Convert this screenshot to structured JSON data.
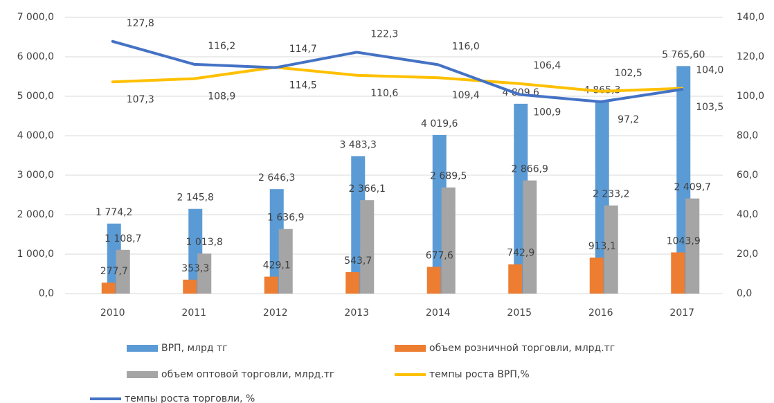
{
  "chart_data": {
    "type": "bar",
    "categories": [
      "2010",
      "2011",
      "2012",
      "2013",
      "2014",
      "2015",
      "2016",
      "2017"
    ],
    "series": [
      {
        "name": "ВРП, млрд тг",
        "color": "#5b9bd5",
        "values": [
          1774.2,
          2145.8,
          2646.3,
          3483.3,
          4019.6,
          4809.6,
          4865.3,
          5765.6
        ],
        "value_labels": [
          "1 774,2",
          "2 145,8",
          "2 646,3",
          "3 483,3",
          "4 019,6",
          "4 809,6",
          "4 865,3",
          "5 765,60"
        ]
      },
      {
        "name": "объем розничной торговли, млрд.тг",
        "color": "#ed7d31",
        "values": [
          277.7,
          353.3,
          429.1,
          543.7,
          677.6,
          742.9,
          913.1,
          1043.9
        ],
        "value_labels": [
          "277,7",
          "353,3",
          "429,1",
          "543,7",
          "677,6",
          "742,9",
          "913,1",
          "1043,9"
        ]
      },
      {
        "name": "объем оптовой торговли, млрд.тг",
        "color": "#a5a5a5",
        "values": [
          1108.7,
          1013.8,
          1636.9,
          2366.1,
          2689.5,
          2866.9,
          2233.2,
          2409.7
        ],
        "value_labels": [
          "1 108,7",
          "1 013,8",
          "1 636,9",
          "2 366,1",
          "2 689,5",
          "2 866,9",
          "2 233,2",
          "2 409,7"
        ]
      },
      {
        "name": "темпы роста ВРП,%",
        "color": "#ffc000",
        "type": "line",
        "axis": "y2",
        "values": [
          107.3,
          108.9,
          114.7,
          110.6,
          109.4,
          106.4,
          102.5,
          104.0
        ],
        "value_labels": [
          "107,3",
          "108,9",
          "114,7",
          "110,6",
          "109,4",
          "106,4",
          "102,5",
          "104,0"
        ]
      },
      {
        "name": "темпы роста торговли, %",
        "color": "#4472c4",
        "type": "line",
        "axis": "y2",
        "values": [
          127.8,
          116.2,
          114.5,
          122.3,
          116.0,
          100.9,
          97.2,
          103.5
        ],
        "value_labels": [
          "127,8",
          "116,2",
          "114,5",
          "122,3",
          "116,0",
          "100,9",
          "97,2",
          "103,5"
        ]
      }
    ],
    "ylim": [
      0,
      7000
    ],
    "yticks": [
      {
        "value": 0,
        "label": "0,0"
      },
      {
        "value": 1000,
        "label": "1 000,0"
      },
      {
        "value": 2000,
        "label": "2 000,0"
      },
      {
        "value": 3000,
        "label": "3 000,0"
      },
      {
        "value": 4000,
        "label": "4 000,0"
      },
      {
        "value": 5000,
        "label": "5 000,0"
      },
      {
        "value": 6000,
        "label": "6 000,0"
      },
      {
        "value": 7000,
        "label": "7 000,0"
      }
    ],
    "y2lim": [
      0,
      140
    ],
    "y2ticks": [
      {
        "value": 0,
        "label": "0,0"
      },
      {
        "value": 20,
        "label": "20,0"
      },
      {
        "value": 40,
        "label": "40,0"
      },
      {
        "value": 60,
        "label": "60,0"
      },
      {
        "value": 80,
        "label": "80,0"
      },
      {
        "value": 100,
        "label": "100,0"
      },
      {
        "value": 120,
        "label": "120,0"
      },
      {
        "value": 140,
        "label": "140,0"
      }
    ],
    "grid": true
  }
}
